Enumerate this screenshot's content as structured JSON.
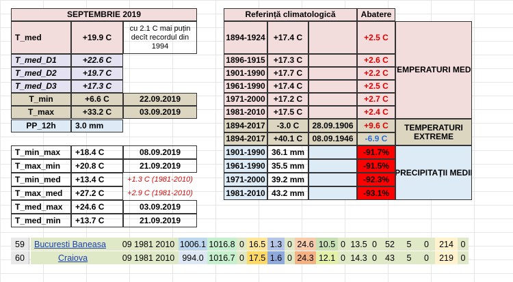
{
  "left": {
    "title": "SEPTEMBRIE 2019",
    "tmed": {
      "label": "T_med",
      "value": "+19.9 C",
      "note": "cu  2.1 C mai puțin decît recordul din 1994"
    },
    "decades": [
      {
        "label": "T_med_D1",
        "value": "+22.6 C"
      },
      {
        "label": "T_med_D2",
        "value": "+19.7 C"
      },
      {
        "label": "T_med_D3",
        "value": "+17.3 C"
      }
    ],
    "tmin": {
      "label": "T_min",
      "value": "+6.6 C",
      "date": "22.09.2019"
    },
    "tmax": {
      "label": "T_max",
      "value": "+33.2 C",
      "date": "03.09.2019"
    },
    "pp": {
      "label": "PP_12h",
      "value": "3.0 mm"
    },
    "extremes": [
      {
        "label": "T_min_max",
        "value": "+18.4 C",
        "date": "08.09.2019",
        "note": false
      },
      {
        "label": "T_max_min",
        "value": "+20.8 C",
        "date": "21.09.2019",
        "note": false
      },
      {
        "label": "T_min_med",
        "value": "+13.4 C",
        "date": "+1.3 C (1981-2010)",
        "note": true
      },
      {
        "label": "T_max_med",
        "value": "+27.2 C",
        "date": "+2.9 C (1981-2010)",
        "note": true
      },
      {
        "label": "T_med_max",
        "value": "+24.6 C",
        "date": "03.09.2019",
        "note": false
      },
      {
        "label": "T_med_min",
        "value": "+13.7 C",
        "date": "21.09.2019",
        "note": false
      }
    ]
  },
  "right": {
    "title": "Referință climatologică",
    "abatere": "Abatere",
    "temp_rows": [
      {
        "period": "1894-1924",
        "value": "+17.4 C",
        "dev": "+2.5 C"
      },
      {
        "period": "1896-1915",
        "value": "+17.3 C",
        "dev": "+2.6 C"
      },
      {
        "period": "1901-1990",
        "value": "+17.7 C",
        "dev": "+2.2 C"
      },
      {
        "period": "1961-1990",
        "value": "+17.4 C",
        "dev": "+2.5 C"
      },
      {
        "period": "1971-2000",
        "value": "+17.2 C",
        "dev": "+2.7 C"
      },
      {
        "period": "1981-2010",
        "value": "+17.5 C",
        "dev": "+2.4 C"
      }
    ],
    "ext_rows": [
      {
        "period": "1894-2017",
        "value": "-3.0 C",
        "date": "28.09.1906",
        "dev": "+9.6 C"
      },
      {
        "period": "1894-2017",
        "value": "+40.1 C",
        "date": "08.09.1946",
        "dev": "-6.9 C"
      }
    ],
    "prec_rows": [
      {
        "period": "1901-1990",
        "value": "36.1 mm",
        "dev": "-91.7%"
      },
      {
        "period": "1961-1990",
        "value": "35.5 mm",
        "dev": "-91.5%"
      },
      {
        "period": "1971-2000",
        "value": "39.2 mm",
        "dev": "-92.3%"
      },
      {
        "period": "1981-2010",
        "value": "43.2 mm",
        "dev": "-93.1%"
      }
    ],
    "labels": {
      "temp": "TEMPERATURI MEDII",
      "ext1": "TEMPERATURI",
      "ext2": "EXTREME",
      "prec": "PRECIPITAȚII MEDII"
    }
  },
  "stations": [
    {
      "n": "59",
      "name": "Bucuresti Baneasa",
      "v": [
        "09 1981 2010",
        "1006.1",
        "1016.8",
        "0",
        "16.5",
        "1.3",
        "0",
        "24.6",
        "10.5",
        "0",
        "13.5",
        "0",
        "52",
        "5",
        "0",
        "214",
        "0"
      ]
    },
    {
      "n": "60",
      "name": "Craiova",
      "v": [
        "09 1981 2010",
        "994.0",
        "1016.7",
        "0",
        "17.5",
        "1.6",
        "0",
        "24.3",
        "12.1",
        "0",
        "14.3",
        "0",
        "43",
        "5",
        "0",
        "219",
        "0"
      ]
    }
  ],
  "colors": {
    "pink": "#f3dcdc",
    "lavender": "#e4e1f0",
    "tan": "#dcd6c1",
    "lightblue": "#dcebf5",
    "red": "#ff0000"
  }
}
